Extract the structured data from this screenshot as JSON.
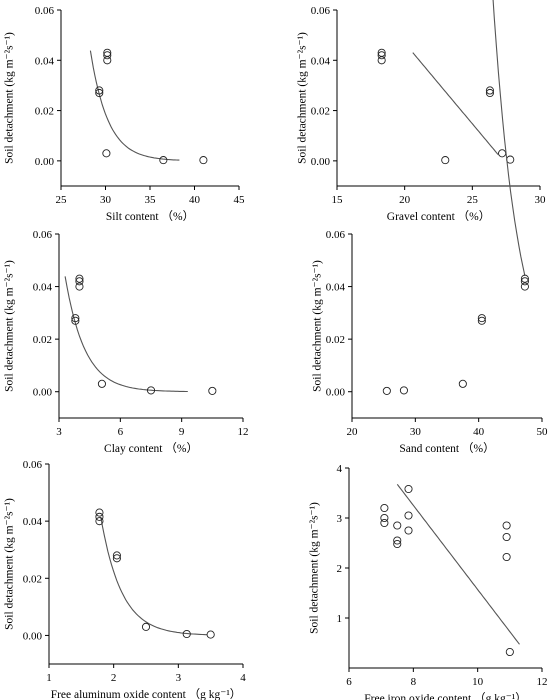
{
  "chart_data": [
    {
      "type": "scatter",
      "xlabel": "Silt content （%）",
      "ylabel": "Soil detachment (kg m⁻²s⁻¹)",
      "xlim": [
        25,
        45
      ],
      "ylim": [
        -0.01,
        0.06
      ],
      "xticks": [
        25,
        30,
        35,
        40,
        45
      ],
      "yticks": [
        0.0,
        0.02,
        0.04,
        0.06
      ],
      "ytick_labels": [
        "0.00",
        "0.02",
        "0.04",
        "0.06"
      ],
      "points": [
        [
          30.2,
          0.043
        ],
        [
          30.2,
          0.042
        ],
        [
          30.2,
          0.04
        ],
        [
          29.3,
          0.028
        ],
        [
          29.3,
          0.027
        ],
        [
          30.1,
          0.003
        ],
        [
          36.5,
          0.0003
        ],
        [
          41.0,
          0.0003
        ]
      ],
      "fit": {
        "kind": "exponential",
        "x_range": [
          28.3,
          38.3
        ],
        "params": [
          0.04386,
          28.3,
          0.5043,
          0
        ]
      }
    },
    {
      "type": "scatter",
      "xlabel": "Gravel content （%）",
      "ylabel": "Soil detachment (kg m⁻²s⁻¹)",
      "xlim": [
        15,
        30
      ],
      "ylim": [
        -0.01,
        0.06
      ],
      "xticks": [
        15,
        20,
        25,
        30
      ],
      "yticks": [
        0.0,
        0.02,
        0.04,
        0.06
      ],
      "ytick_labels": [
        "0.00",
        "0.02",
        "0.04",
        "0.06"
      ],
      "points": [
        [
          18.3,
          0.043
        ],
        [
          18.3,
          0.042
        ],
        [
          18.3,
          0.04
        ],
        [
          26.3,
          0.028
        ],
        [
          26.3,
          0.027
        ],
        [
          23.0,
          0.0003
        ],
        [
          27.2,
          0.003
        ],
        [
          27.8,
          0.0005
        ]
      ],
      "fit": {
        "kind": "linear",
        "x_range": [
          20.6,
          26.9
        ],
        "params": [
          -0.00643,
          0.1755
        ]
      }
    },
    {
      "type": "scatter",
      "xlabel": "Clay content （%）",
      "ylabel": "Soil detachment (kg m⁻²s⁻¹)",
      "xlim": [
        3,
        12
      ],
      "ylim": [
        -0.01,
        0.06
      ],
      "xticks": [
        3,
        6,
        9,
        12
      ],
      "yticks": [
        0.0,
        0.02,
        0.04,
        0.06
      ],
      "ytick_labels": [
        "0.00",
        "0.02",
        "0.04",
        "0.06"
      ],
      "points": [
        [
          4.0,
          0.043
        ],
        [
          4.0,
          0.042
        ],
        [
          4.0,
          0.04
        ],
        [
          3.8,
          0.028
        ],
        [
          3.8,
          0.027
        ],
        [
          5.1,
          0.003
        ],
        [
          7.5,
          0.0005
        ],
        [
          10.5,
          0.0003
        ]
      ],
      "fit": {
        "kind": "exponential",
        "x_range": [
          3.3,
          9.3
        ],
        "params": [
          0.04386,
          3.3,
          1.0378,
          0
        ]
      }
    },
    {
      "type": "scatter",
      "xlabel": "Sand content （%）",
      "ylabel": "Soil detachment (kg m⁻²s⁻¹)",
      "xlim": [
        20,
        50
      ],
      "ylim": [
        -0.01,
        0.06
      ],
      "xticks": [
        20,
        30,
        40,
        50
      ],
      "yticks": [
        0.0,
        0.02,
        0.04,
        0.06
      ],
      "ytick_labels": [
        "0.00",
        "0.02",
        "0.04",
        "0.06"
      ],
      "points": [
        [
          47.3,
          0.043
        ],
        [
          47.3,
          0.042
        ],
        [
          47.3,
          0.04
        ],
        [
          40.5,
          0.028
        ],
        [
          40.5,
          0.027
        ],
        [
          37.5,
          0.003
        ],
        [
          28.2,
          0.0005
        ],
        [
          25.5,
          0.0003
        ]
      ],
      "fit": {
        "kind": "exponential",
        "x_range": [
          28,
          47.3
        ],
        "params": [
          0.04377,
          47.3,
          0.2436,
          0.0003
        ]
      }
    },
    {
      "type": "scatter",
      "xlabel": "Free aluminum oxide content （g kg⁻¹）",
      "ylabel": "Soil detachment (kg m⁻²s⁻¹)",
      "xlim": [
        1,
        4
      ],
      "ylim": [
        -0.01,
        0.06
      ],
      "xticks": [
        1,
        2,
        3,
        4
      ],
      "yticks": [
        0.0,
        0.02,
        0.04,
        0.06
      ],
      "ytick_labels": [
        "0.00",
        "0.02",
        "0.04",
        "0.06"
      ],
      "points": [
        [
          1.78,
          0.043
        ],
        [
          1.78,
          0.0415
        ],
        [
          1.78,
          0.04
        ],
        [
          2.05,
          0.028
        ],
        [
          2.05,
          0.027
        ],
        [
          2.5,
          0.003
        ],
        [
          3.13,
          0.0005
        ],
        [
          3.5,
          0.0003
        ]
      ],
      "fit": {
        "kind": "exponential",
        "x_range": [
          1.8,
          3.45
        ],
        "params": [
          0.04153,
          1.8,
          3.1,
          0
        ]
      }
    },
    {
      "type": "scatter",
      "xlabel": "Free iron oxide content （g kg⁻¹）",
      "ylabel": "Soil detachment (kg m⁻²s⁻¹)",
      "xlim": [
        6,
        12
      ],
      "ylim": [
        0,
        4
      ],
      "xticks": [
        6,
        8,
        10,
        12
      ],
      "yticks": [
        1,
        2,
        3,
        4
      ],
      "ytick_labels": [
        "1",
        "2",
        "3",
        "4"
      ],
      "points": [
        [
          7.1,
          3.2
        ],
        [
          7.1,
          3.0
        ],
        [
          7.1,
          2.9
        ],
        [
          7.5,
          2.85
        ],
        [
          7.5,
          2.55
        ],
        [
          7.5,
          2.48
        ],
        [
          7.85,
          3.58
        ],
        [
          7.85,
          3.05
        ],
        [
          7.85,
          2.75
        ],
        [
          10.9,
          2.85
        ],
        [
          10.9,
          2.62
        ],
        [
          10.9,
          2.22
        ],
        [
          11.0,
          0.32
        ]
      ],
      "fit": {
        "kind": "linear",
        "x_range": [
          7.5,
          11.3
        ],
        "params": [
          -0.8421,
          9.9895
        ]
      }
    }
  ]
}
